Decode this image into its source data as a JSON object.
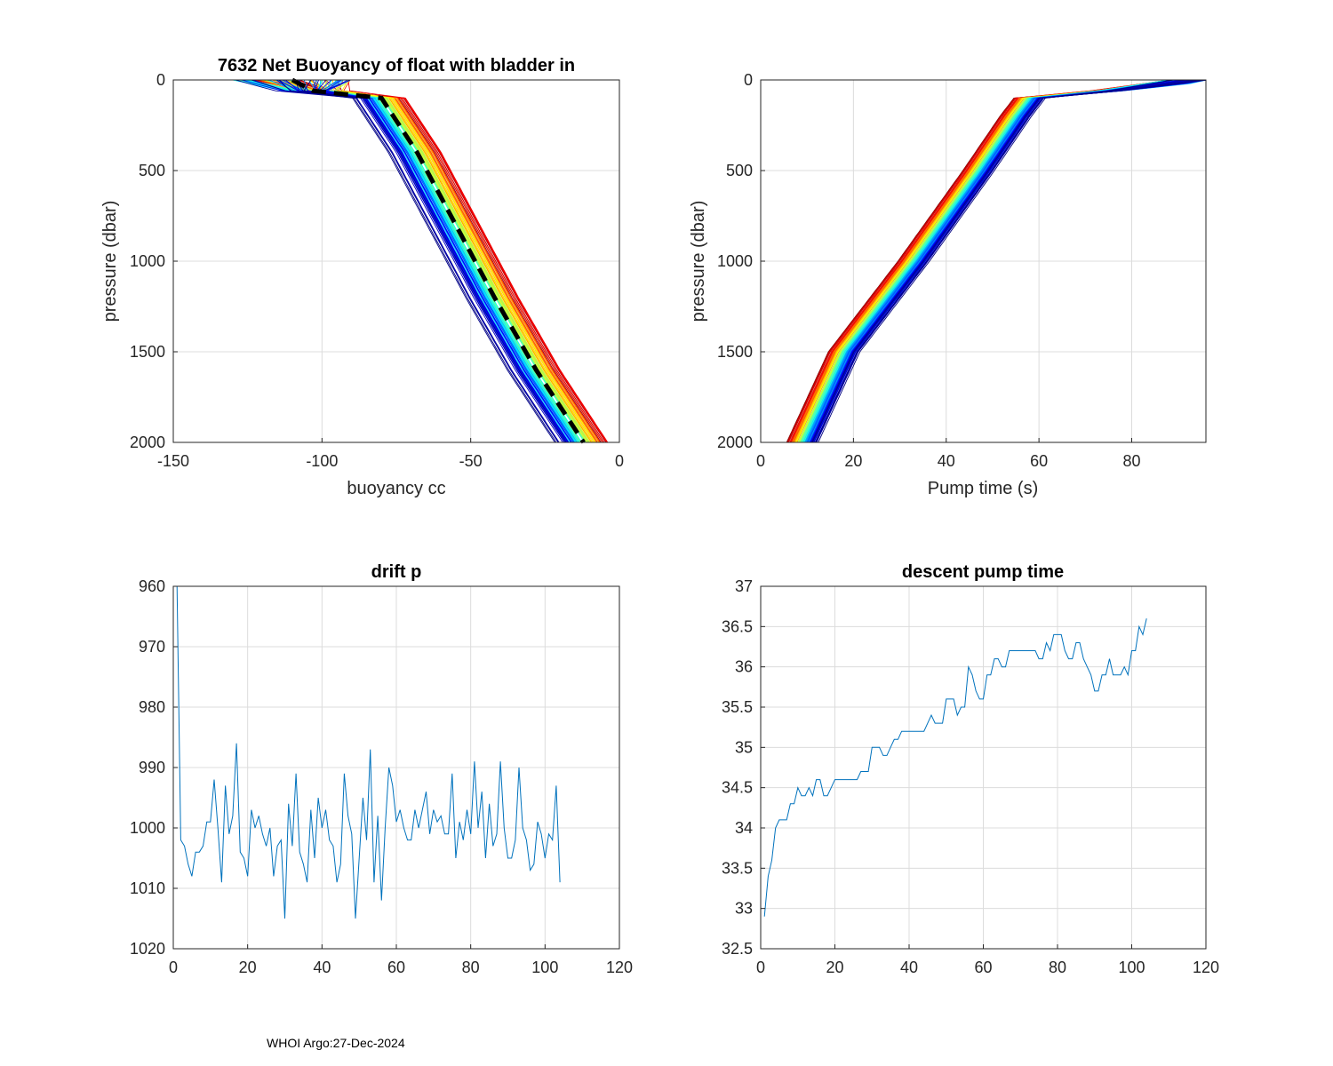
{
  "footer": "WHOI Argo:27-Dec-2024",
  "chart_data": [
    {
      "type": "line",
      "id": "buoy",
      "title": "7632 Net Buoyancy of float with bladder in",
      "xlabel": "buoyancy cc",
      "ylabel": "pressure (dbar)",
      "xlim": [
        -150,
        0
      ],
      "ylim": [
        0,
        2000
      ],
      "y_reversed": true,
      "xticks": [
        -150,
        -100,
        -50,
        0
      ],
      "yticks": [
        0,
        500,
        1000,
        1500,
        2000
      ],
      "grid": true,
      "profile_count": 105,
      "colormap": "jet",
      "mean_profile": {
        "style": "black dashed",
        "pressure": [
          0,
          60,
          100,
          400,
          800,
          1200,
          1600,
          2000
        ],
        "buoyancy": [
          -110,
          -103,
          -80,
          -68,
          -55,
          -42,
          -28,
          -12
        ]
      }
    },
    {
      "type": "line",
      "id": "pump",
      "title": "",
      "xlabel": "Pump time (s)",
      "ylabel": "pressure (dbar)",
      "xlim": [
        0,
        96
      ],
      "ylim": [
        0,
        2000
      ],
      "y_reversed": true,
      "xticks": [
        0,
        20,
        40,
        60,
        80
      ],
      "yticks": [
        0,
        500,
        1000,
        1500,
        2000
      ],
      "grid": true,
      "profile_count": 105,
      "colormap": "jet",
      "reference_profile": {
        "pressure": [
          0,
          60,
          100,
          200,
          500,
          1000,
          1500,
          2000
        ],
        "pump_time": [
          94,
          75,
          58,
          55,
          47,
          33,
          18,
          9
        ]
      }
    },
    {
      "type": "line",
      "id": "drift",
      "title": "drift p",
      "xlabel": "",
      "ylabel": "",
      "xlim": [
        0,
        120
      ],
      "ylim": [
        960,
        1020
      ],
      "y_reversed": true,
      "xticks": [
        0,
        20,
        40,
        60,
        80,
        100,
        120
      ],
      "yticks": [
        960,
        970,
        980,
        990,
        1000,
        1010,
        1020
      ],
      "grid": true,
      "series": [
        {
          "name": "drift p",
          "color": "#0072bd",
          "x": [
            1,
            2,
            3,
            4,
            5,
            6,
            7,
            8,
            9,
            10,
            11,
            12,
            13,
            14,
            15,
            16,
            17,
            18,
            19,
            20,
            21,
            22,
            23,
            24,
            25,
            26,
            27,
            28,
            29,
            30,
            31,
            32,
            33,
            34,
            35,
            36,
            37,
            38,
            39,
            40,
            41,
            42,
            43,
            44,
            45,
            46,
            47,
            48,
            49,
            50,
            51,
            52,
            53,
            54,
            55,
            56,
            57,
            58,
            59,
            60,
            61,
            62,
            63,
            64,
            65,
            66,
            67,
            68,
            69,
            70,
            71,
            72,
            73,
            74,
            75,
            76,
            77,
            78,
            79,
            80,
            81,
            82,
            83,
            84,
            85,
            86,
            87,
            88,
            89,
            90,
            91,
            92,
            93,
            94,
            95,
            96,
            97,
            98,
            99,
            100,
            101,
            102,
            103,
            104
          ],
          "values": [
            960,
            1002,
            1003,
            1006,
            1008,
            1004,
            1004,
            1003,
            999,
            999,
            992,
            1000,
            1009,
            993,
            1001,
            998,
            986,
            1004,
            1005,
            1008,
            997,
            1000,
            998,
            1001,
            1003,
            1000,
            1008,
            1003,
            1002,
            1015,
            996,
            1003,
            991,
            1004,
            1006,
            1009,
            997,
            1005,
            995,
            1000,
            997,
            1002,
            1003,
            1009,
            1006,
            991,
            998,
            1001,
            1015,
            1005,
            995,
            1002,
            987,
            1009,
            998,
            1012,
            1000,
            990,
            993,
            999,
            997,
            1000,
            1002,
            1002,
            997,
            1000,
            997,
            994,
            1001,
            997,
            999,
            998,
            1001,
            1001,
            991,
            1005,
            999,
            1002,
            997,
            1001,
            989,
            1000,
            994,
            1005,
            996,
            1003,
            1001,
            989,
            1000,
            1005,
            1005,
            1002,
            990,
            1000,
            1002,
            1007,
            1006,
            999,
            1001,
            1005,
            1001,
            1002,
            993,
            1009
          ]
        }
      ]
    },
    {
      "type": "line",
      "id": "descent",
      "title": "descent pump time",
      "xlabel": "",
      "ylabel": "",
      "xlim": [
        0,
        120
      ],
      "ylim": [
        32.5,
        37
      ],
      "xticks": [
        0,
        20,
        40,
        60,
        80,
        100,
        120
      ],
      "yticks": [
        32.5,
        33,
        33.5,
        34,
        34.5,
        35,
        35.5,
        36,
        36.5,
        37
      ],
      "grid": true,
      "series": [
        {
          "name": "descent pump time",
          "color": "#0072bd",
          "x": [
            1,
            2,
            3,
            4,
            5,
            6,
            7,
            8,
            9,
            10,
            11,
            12,
            13,
            14,
            15,
            16,
            17,
            18,
            19,
            20,
            21,
            22,
            23,
            24,
            25,
            26,
            27,
            28,
            29,
            30,
            31,
            32,
            33,
            34,
            35,
            36,
            37,
            38,
            39,
            40,
            41,
            42,
            43,
            44,
            45,
            46,
            47,
            48,
            49,
            50,
            51,
            52,
            53,
            54,
            55,
            56,
            57,
            58,
            59,
            60,
            61,
            62,
            63,
            64,
            65,
            66,
            67,
            68,
            69,
            70,
            71,
            72,
            73,
            74,
            75,
            76,
            77,
            78,
            79,
            80,
            81,
            82,
            83,
            84,
            85,
            86,
            87,
            88,
            89,
            90,
            91,
            92,
            93,
            94,
            95,
            96,
            97,
            98,
            99,
            100,
            101,
            102,
            103,
            104
          ],
          "values": [
            32.9,
            33.4,
            33.6,
            34.0,
            34.1,
            34.1,
            34.1,
            34.3,
            34.3,
            34.5,
            34.4,
            34.4,
            34.5,
            34.4,
            34.6,
            34.6,
            34.4,
            34.4,
            34.5,
            34.6,
            34.6,
            34.6,
            34.6,
            34.6,
            34.6,
            34.6,
            34.7,
            34.7,
            34.7,
            35.0,
            35.0,
            35.0,
            34.9,
            34.9,
            35.0,
            35.1,
            35.1,
            35.2,
            35.2,
            35.2,
            35.2,
            35.2,
            35.2,
            35.2,
            35.3,
            35.4,
            35.3,
            35.3,
            35.3,
            35.6,
            35.6,
            35.6,
            35.4,
            35.5,
            35.5,
            36.0,
            35.9,
            35.7,
            35.6,
            35.6,
            35.9,
            35.9,
            36.1,
            36.1,
            36.0,
            36.0,
            36.2,
            36.2,
            36.2,
            36.2,
            36.2,
            36.2,
            36.2,
            36.2,
            36.1,
            36.1,
            36.3,
            36.2,
            36.4,
            36.4,
            36.4,
            36.2,
            36.1,
            36.1,
            36.3,
            36.3,
            36.1,
            36.0,
            35.9,
            35.7,
            35.7,
            35.9,
            35.9,
            36.1,
            35.9,
            35.9,
            35.9,
            36.0,
            35.9,
            36.2,
            36.2,
            36.5,
            36.4,
            36.6
          ]
        }
      ]
    }
  ]
}
